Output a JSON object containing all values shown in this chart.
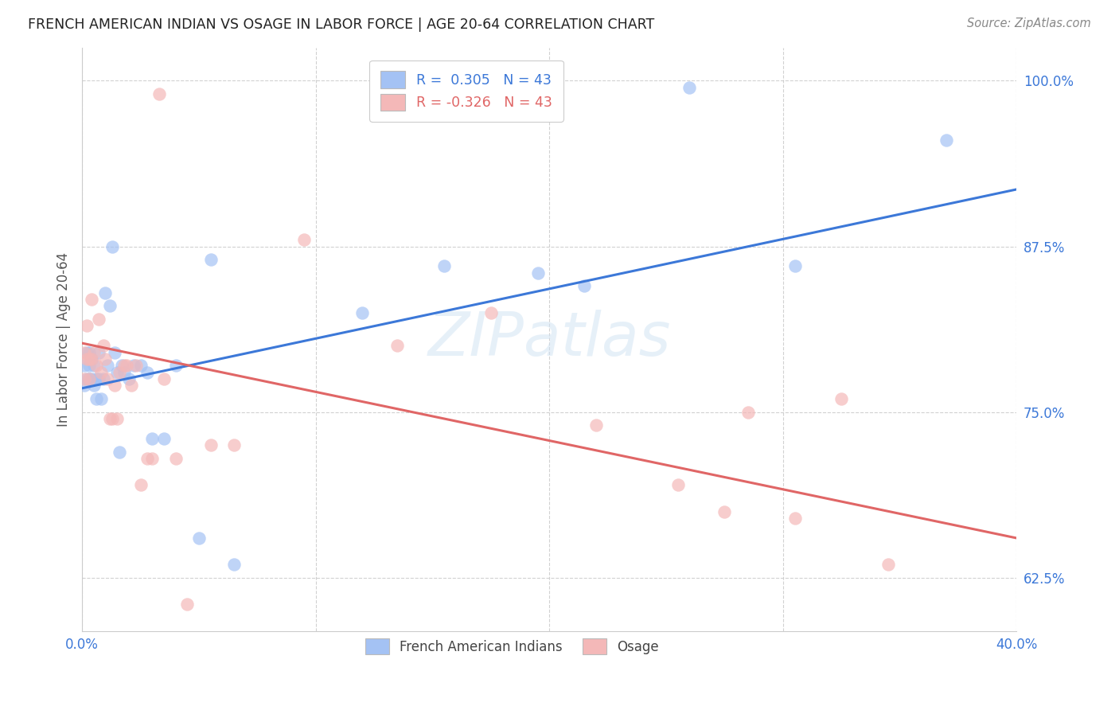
{
  "title": "FRENCH AMERICAN INDIAN VS OSAGE IN LABOR FORCE | AGE 20-64 CORRELATION CHART",
  "source": "Source: ZipAtlas.com",
  "ylabel": "In Labor Force | Age 20-64",
  "xlim": [
    0.0,
    0.4
  ],
  "ylim": [
    0.585,
    1.025
  ],
  "xticks": [
    0.0,
    0.1,
    0.2,
    0.3,
    0.4
  ],
  "xticklabels": [
    "0.0%",
    "",
    "",
    "",
    "40.0%"
  ],
  "yticks": [
    0.625,
    0.75,
    0.875,
    1.0
  ],
  "yticklabels": [
    "62.5%",
    "75.0%",
    "87.5%",
    "100.0%"
  ],
  "blue_R": 0.305,
  "pink_R": -0.326,
  "N": 43,
  "blue_color": "#a4c2f4",
  "pink_color": "#f4b8b8",
  "blue_line_color": "#3c78d8",
  "pink_line_color": "#e06666",
  "legend_label_blue": "French American Indians",
  "legend_label_pink": "Osage",
  "watermark_zip": "ZIP",
  "watermark_atlas": "atlas",
  "blue_x": [
    0.001,
    0.001,
    0.002,
    0.002,
    0.003,
    0.003,
    0.003,
    0.004,
    0.004,
    0.005,
    0.005,
    0.006,
    0.006,
    0.007,
    0.007,
    0.008,
    0.009,
    0.01,
    0.011,
    0.012,
    0.013,
    0.014,
    0.015,
    0.016,
    0.017,
    0.018,
    0.02,
    0.022,
    0.025,
    0.028,
    0.03,
    0.035,
    0.04,
    0.05,
    0.055,
    0.065,
    0.12,
    0.155,
    0.195,
    0.215,
    0.26,
    0.305,
    0.37
  ],
  "blue_y": [
    0.785,
    0.77,
    0.795,
    0.775,
    0.795,
    0.785,
    0.775,
    0.79,
    0.775,
    0.785,
    0.77,
    0.775,
    0.76,
    0.795,
    0.775,
    0.76,
    0.775,
    0.84,
    0.785,
    0.83,
    0.875,
    0.795,
    0.78,
    0.72,
    0.785,
    0.78,
    0.775,
    0.785,
    0.785,
    0.78,
    0.73,
    0.73,
    0.785,
    0.655,
    0.865,
    0.635,
    0.825,
    0.86,
    0.855,
    0.845,
    0.995,
    0.86,
    0.955
  ],
  "pink_x": [
    0.001,
    0.001,
    0.002,
    0.002,
    0.003,
    0.003,
    0.004,
    0.004,
    0.005,
    0.006,
    0.007,
    0.008,
    0.009,
    0.01,
    0.011,
    0.012,
    0.013,
    0.014,
    0.015,
    0.016,
    0.018,
    0.019,
    0.021,
    0.023,
    0.025,
    0.028,
    0.03,
    0.033,
    0.035,
    0.04,
    0.045,
    0.055,
    0.065,
    0.095,
    0.135,
    0.175,
    0.22,
    0.255,
    0.275,
    0.285,
    0.305,
    0.325,
    0.345
  ],
  "pink_y": [
    0.795,
    0.775,
    0.815,
    0.79,
    0.79,
    0.775,
    0.835,
    0.79,
    0.795,
    0.785,
    0.82,
    0.78,
    0.8,
    0.79,
    0.775,
    0.745,
    0.745,
    0.77,
    0.745,
    0.78,
    0.785,
    0.785,
    0.77,
    0.785,
    0.695,
    0.715,
    0.715,
    0.99,
    0.775,
    0.715,
    0.605,
    0.725,
    0.725,
    0.88,
    0.8,
    0.825,
    0.74,
    0.695,
    0.675,
    0.75,
    0.67,
    0.76,
    0.635
  ],
  "blue_line_x": [
    0.0,
    0.4
  ],
  "blue_line_y": [
    0.768,
    0.918
  ],
  "pink_line_x": [
    0.0,
    0.4
  ],
  "pink_line_y": [
    0.802,
    0.655
  ]
}
